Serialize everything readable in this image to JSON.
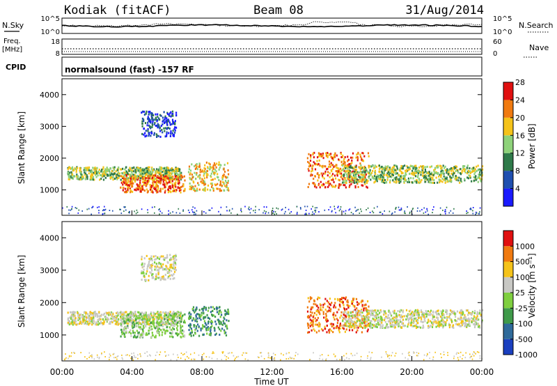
{
  "header": {
    "radar": "Kodiak (fitACF)",
    "beam": "Beam 08",
    "date": "31/Aug/2014"
  },
  "params_panel": {
    "nsky_label": "N.Sky",
    "nsky_ticks": [
      "10^5",
      "10^0"
    ],
    "nsearch_label": "N.Search",
    "nsearch_ticks": [
      "10^5",
      "10^0"
    ],
    "freq_label_top": "Freq.",
    "freq_label_unit": "[MHz]",
    "freq_ticks": [
      "18",
      "8"
    ],
    "nave_label": "Nave",
    "nave_ticks": [
      "60",
      "0"
    ],
    "cpid_label": "CPID",
    "cpid_text": "normalsound (fast) -157 RF"
  },
  "chart_data": [
    {
      "type": "heatmap",
      "panel": "power",
      "ylabel": "Slant Range [km]",
      "yticks": [
        "1000",
        "2000",
        "3000",
        "4000"
      ],
      "ylim": [
        200,
        4500
      ],
      "xlim": [
        0,
        24
      ],
      "colorbar_label": "Power [dB]",
      "colorbar_ticks": [
        "4",
        "8",
        "12",
        "16",
        "20",
        "24",
        "28"
      ],
      "colorbar_colors": [
        "#1a1aff",
        "#1f4fb0",
        "#2f7a4a",
        "#8ed27a",
        "#f5c31a",
        "#f07a10",
        "#e01010"
      ],
      "features": [
        {
          "t0": 0.3,
          "t1": 6.8,
          "r0": 1350,
          "r1": 1750,
          "level": 3
        },
        {
          "t0": 3.3,
          "t1": 7.0,
          "r0": 950,
          "r1": 1500,
          "level": 5
        },
        {
          "t0": 7.2,
          "t1": 9.5,
          "r0": 1000,
          "r1": 1900,
          "level": 4
        },
        {
          "t0": 14.0,
          "t1": 17.5,
          "r0": 1100,
          "r1": 2200,
          "level": 5
        },
        {
          "t0": 16.0,
          "t1": 24.0,
          "r0": 1250,
          "r1": 1800,
          "level": 3
        },
        {
          "t0": 4.5,
          "t1": 6.5,
          "r0": 2700,
          "r1": 3500,
          "level": 1
        }
      ]
    },
    {
      "type": "heatmap",
      "panel": "velocity",
      "ylabel": "Slant Range [km]",
      "yticks": [
        "1000",
        "2000",
        "3000",
        "4000"
      ],
      "ylim": [
        200,
        4500
      ],
      "xlim": [
        0,
        24
      ],
      "colorbar_label": "Velocity [m s⁻¹]",
      "colorbar_ticks": [
        "1000",
        "500",
        "100",
        "25",
        "-25",
        "-100",
        "-500",
        "-1000"
      ],
      "colorbar_colors": [
        "#1a3fbf",
        "#2f6a9a",
        "#3f9a4a",
        "#7fcf3f",
        "#c8c8c4",
        "#f5c31a",
        "#f07a10",
        "#e01010"
      ],
      "features": [
        {
          "t0": 0.3,
          "t1": 6.8,
          "r0": 1350,
          "r1": 1750,
          "color_index": 4
        },
        {
          "t0": 3.3,
          "t1": 7.0,
          "r0": 950,
          "r1": 1700,
          "color_index": 3
        },
        {
          "t0": 7.2,
          "t1": 9.5,
          "r0": 1000,
          "r1": 1900,
          "color_index": 2
        },
        {
          "t0": 14.0,
          "t1": 17.5,
          "r0": 1100,
          "r1": 2200,
          "color_index": 6
        },
        {
          "t0": 16.0,
          "t1": 24.0,
          "r0": 1250,
          "r1": 1800,
          "color_index": 4
        },
        {
          "t0": 4.5,
          "t1": 6.5,
          "r0": 2700,
          "r1": 3500,
          "color_index": 4
        }
      ]
    }
  ],
  "xaxis": {
    "label": "Time UT",
    "ticks": [
      "00:00",
      "04:00",
      "08:00",
      "12:00",
      "16:00",
      "20:00",
      "00:00"
    ],
    "xlim": [
      0,
      24
    ]
  }
}
